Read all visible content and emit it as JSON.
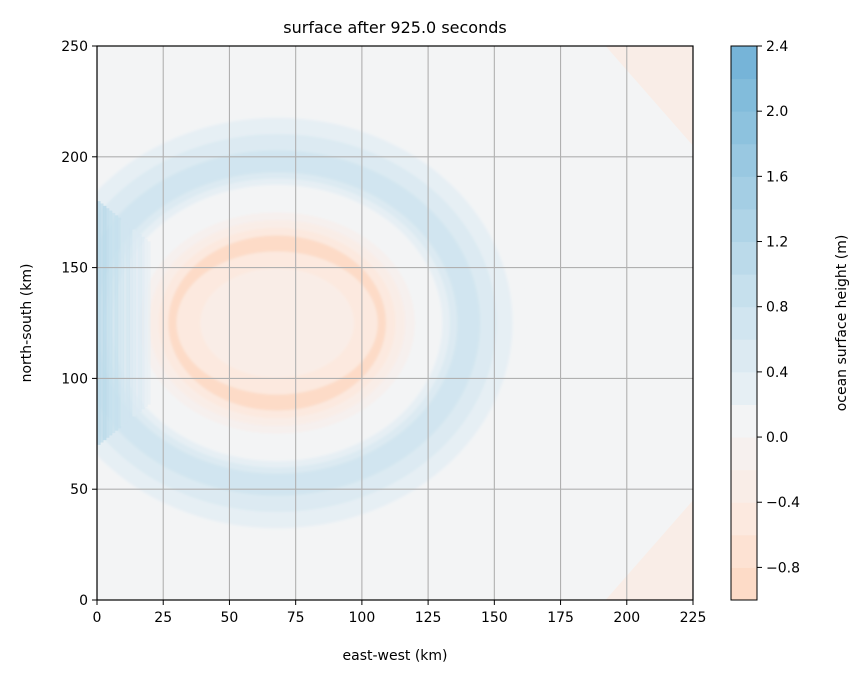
{
  "chart_data": {
    "type": "heatmap",
    "subtype": "filled-contour",
    "title": "surface after 925.0 seconds",
    "xlabel": "east-west (km)",
    "ylabel": "north-south (km)",
    "xlim": [
      0,
      225
    ],
    "ylim": [
      0,
      250
    ],
    "xticks": [
      0,
      25,
      50,
      75,
      100,
      125,
      150,
      175,
      200,
      225
    ],
    "yticks": [
      0,
      50,
      100,
      150,
      200,
      250
    ],
    "grid": true,
    "background_color": "#f3f4f5",
    "colorbar": {
      "label": "ocean surface height (m)",
      "range": [
        -1.0,
        2.4
      ],
      "tick_values": [
        -0.8,
        -0.4,
        0.0,
        0.4,
        0.8,
        1.2,
        1.6,
        2.0,
        2.4
      ],
      "tick_labels": [
        "−0.8",
        "−0.4",
        "0.0",
        "0.4",
        "0.8",
        "1.2",
        "1.6",
        "2.0",
        "2.4"
      ],
      "levels": [
        -1.0,
        -0.8,
        -0.6,
        -0.4,
        -0.2,
        0.0,
        0.2,
        0.4,
        0.6,
        0.8,
        1.0,
        1.2,
        1.4,
        1.6,
        1.8,
        2.0,
        2.2,
        2.4
      ],
      "colors": [
        "#fddbc7",
        "#fde2d3",
        "#fce9df",
        "#f9ede7",
        "#f6f0ee",
        "#f3f4f5",
        "#e6eff4",
        "#dceaf2",
        "#d1e5f0",
        "#c6e0ed",
        "#bbdaea",
        "#afd4e7",
        "#a4cee4",
        "#99c8e1",
        "#8dc2de",
        "#82bcdb",
        "#76b4d8"
      ]
    },
    "features": [
      {
        "kind": "ring",
        "center_km": [
          68,
          125
        ],
        "inner_radius_km": [
          63,
          63
        ],
        "outer_radius_km": [
          95,
          100
        ],
        "value_m": 0.8
      },
      {
        "kind": "depression",
        "center_km": [
          68,
          125
        ],
        "radius_km": [
          52,
          50
        ],
        "value_m": -0.8
      },
      {
        "kind": "inner-center",
        "center_km": [
          68,
          125
        ],
        "radius_km": [
          20,
          17
        ],
        "value_m": -0.2
      },
      {
        "kind": "boundary-band",
        "x_range_km": [
          0,
          20
        ],
        "y_range_km": [
          70,
          180
        ],
        "value_m": 1.2
      },
      {
        "kind": "corner",
        "location": "top-right",
        "value_m": -0.2
      },
      {
        "kind": "corner",
        "location": "bottom-right",
        "value_m": -0.2
      }
    ]
  }
}
